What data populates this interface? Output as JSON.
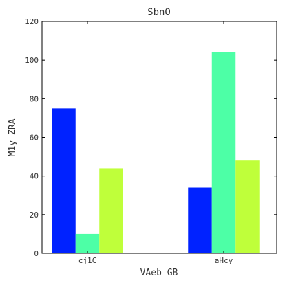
{
  "chart_data": {
    "type": "bar",
    "title": "SbnO",
    "xlabel": "VAeb GB",
    "ylabel": "M1y  ZRA",
    "categories": [
      "cj1C",
      "aHcy"
    ],
    "series": [
      {
        "values": [
          75,
          34
        ],
        "color": "#0022ff"
      },
      {
        "values": [
          10,
          104
        ],
        "color": "#4dffa6"
      },
      {
        "values": [
          44,
          48
        ],
        "color": "#bfff3a"
      }
    ],
    "ylim": [
      0,
      120
    ],
    "yticks": [
      0,
      20,
      40,
      60,
      80,
      100,
      120
    ],
    "grid": false,
    "legend": "none"
  }
}
